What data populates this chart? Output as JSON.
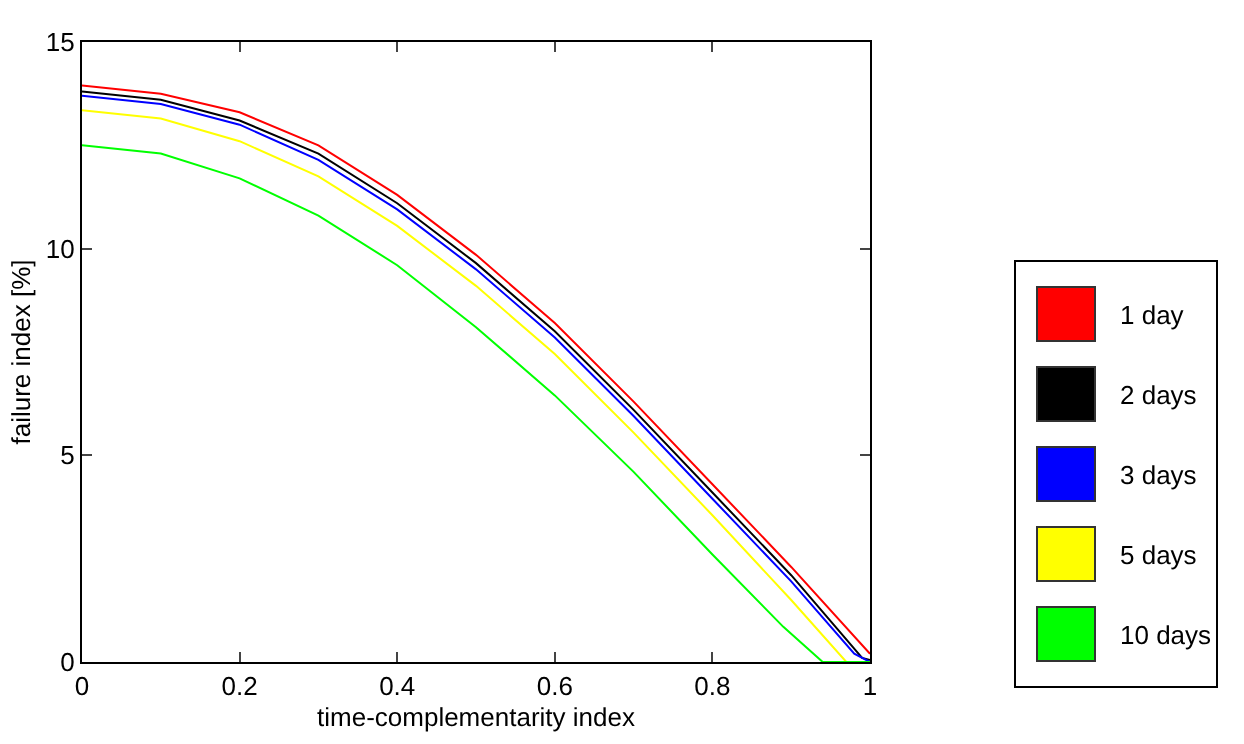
{
  "chart_data": {
    "type": "line",
    "xlabel": "time-complementarity index",
    "ylabel": "failure index [%]",
    "xlim": [
      0,
      1
    ],
    "xticks": [
      0,
      0.2,
      0.4,
      0.6,
      0.8,
      1
    ],
    "ylim": [
      0,
      15
    ],
    "yticks": [
      0,
      5,
      10,
      15
    ],
    "grid": false,
    "legend": "right",
    "marker": "none",
    "line_style": "solid",
    "series": [
      {
        "name": "1 day",
        "color": "#ff0000",
        "x": [
          0,
          0.1,
          0.2,
          0.3,
          0.4,
          0.5,
          0.6,
          0.7,
          0.8,
          0.9,
          1
        ],
        "values": [
          13.95,
          13.75,
          13.3,
          12.5,
          11.3,
          9.85,
          8.2,
          6.3,
          4.3,
          2.3,
          0.2
        ]
      },
      {
        "name": "2 days",
        "color": "#000000",
        "x": [
          0,
          0.1,
          0.2,
          0.3,
          0.4,
          0.5,
          0.6,
          0.7,
          0.8,
          0.9,
          0.99,
          1
        ],
        "values": [
          13.8,
          13.6,
          13.1,
          12.3,
          11.1,
          9.65,
          8.0,
          6.1,
          4.1,
          2.1,
          0.1,
          0.05
        ]
      },
      {
        "name": "3 days",
        "color": "#0000ff",
        "x": [
          0,
          0.1,
          0.2,
          0.3,
          0.4,
          0.5,
          0.6,
          0.7,
          0.8,
          0.9,
          0.98,
          1
        ],
        "values": [
          13.7,
          13.5,
          13.0,
          12.15,
          10.95,
          9.5,
          7.85,
          5.95,
          3.95,
          1.95,
          0.2,
          0
        ]
      },
      {
        "name": "5 days",
        "color": "#ffff00",
        "x": [
          0,
          0.1,
          0.2,
          0.3,
          0.4,
          0.5,
          0.6,
          0.7,
          0.8,
          0.9,
          0.97,
          1
        ],
        "values": [
          13.35,
          13.15,
          12.6,
          11.75,
          10.55,
          9.1,
          7.45,
          5.55,
          3.55,
          1.5,
          0,
          0
        ]
      },
      {
        "name": "10 days",
        "color": "#00ff00",
        "x": [
          0,
          0.1,
          0.2,
          0.3,
          0.4,
          0.5,
          0.6,
          0.7,
          0.8,
          0.89,
          0.94,
          1
        ],
        "values": [
          12.5,
          12.3,
          11.7,
          10.8,
          9.6,
          8.1,
          6.45,
          4.6,
          2.6,
          0.85,
          0,
          0
        ]
      }
    ]
  }
}
